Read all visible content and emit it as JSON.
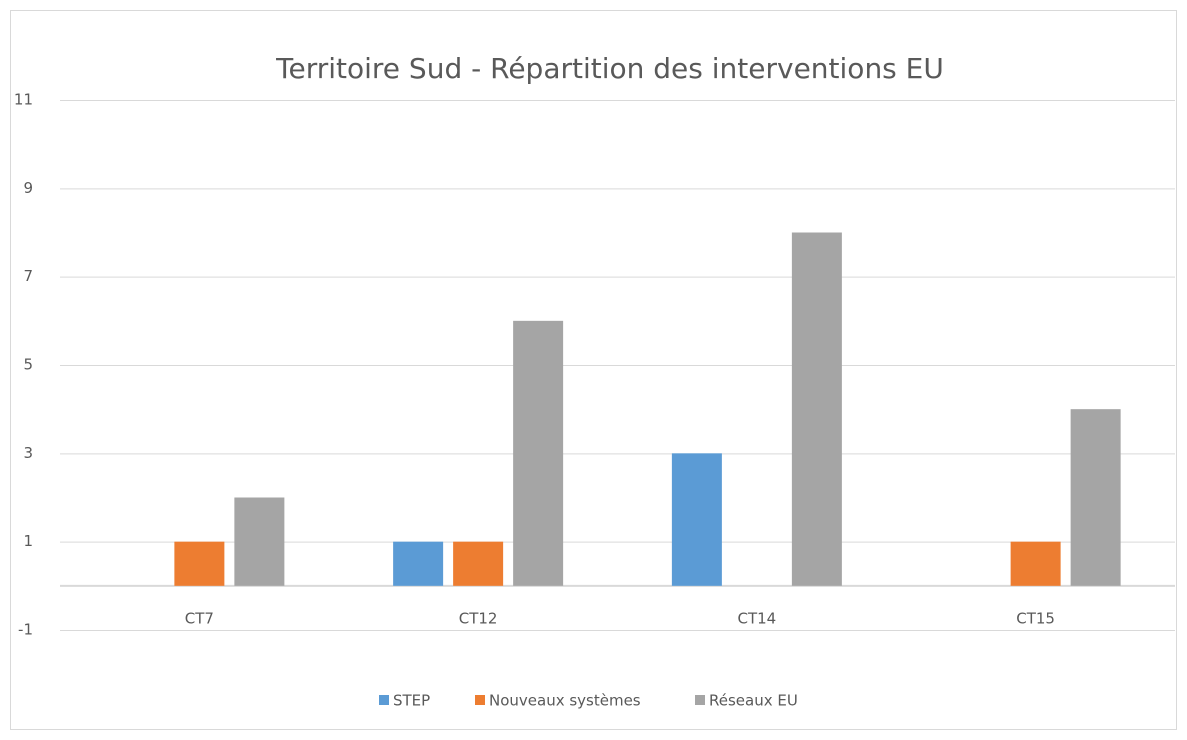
{
  "chart_data": {
    "type": "bar",
    "title": "Territoire Sud - Répartition des interventions EU",
    "categories": [
      "CT7",
      "CT12",
      "CT14",
      "CT15"
    ],
    "series": [
      {
        "name": "STEP",
        "color": "#5b9bd5",
        "values": [
          0,
          1,
          3,
          0
        ]
      },
      {
        "name": "Nouveaux systèmes",
        "color": "#ed7d31",
        "values": [
          1,
          1,
          0,
          1
        ]
      },
      {
        "name": "Réseaux EU",
        "color": "#a5a5a5",
        "values": [
          2,
          6,
          8,
          4
        ]
      }
    ],
    "ylim": [
      -1,
      11
    ],
    "yticks": [
      -1,
      1,
      3,
      5,
      7,
      9,
      11
    ],
    "grid": true,
    "legend": "bottom"
  }
}
